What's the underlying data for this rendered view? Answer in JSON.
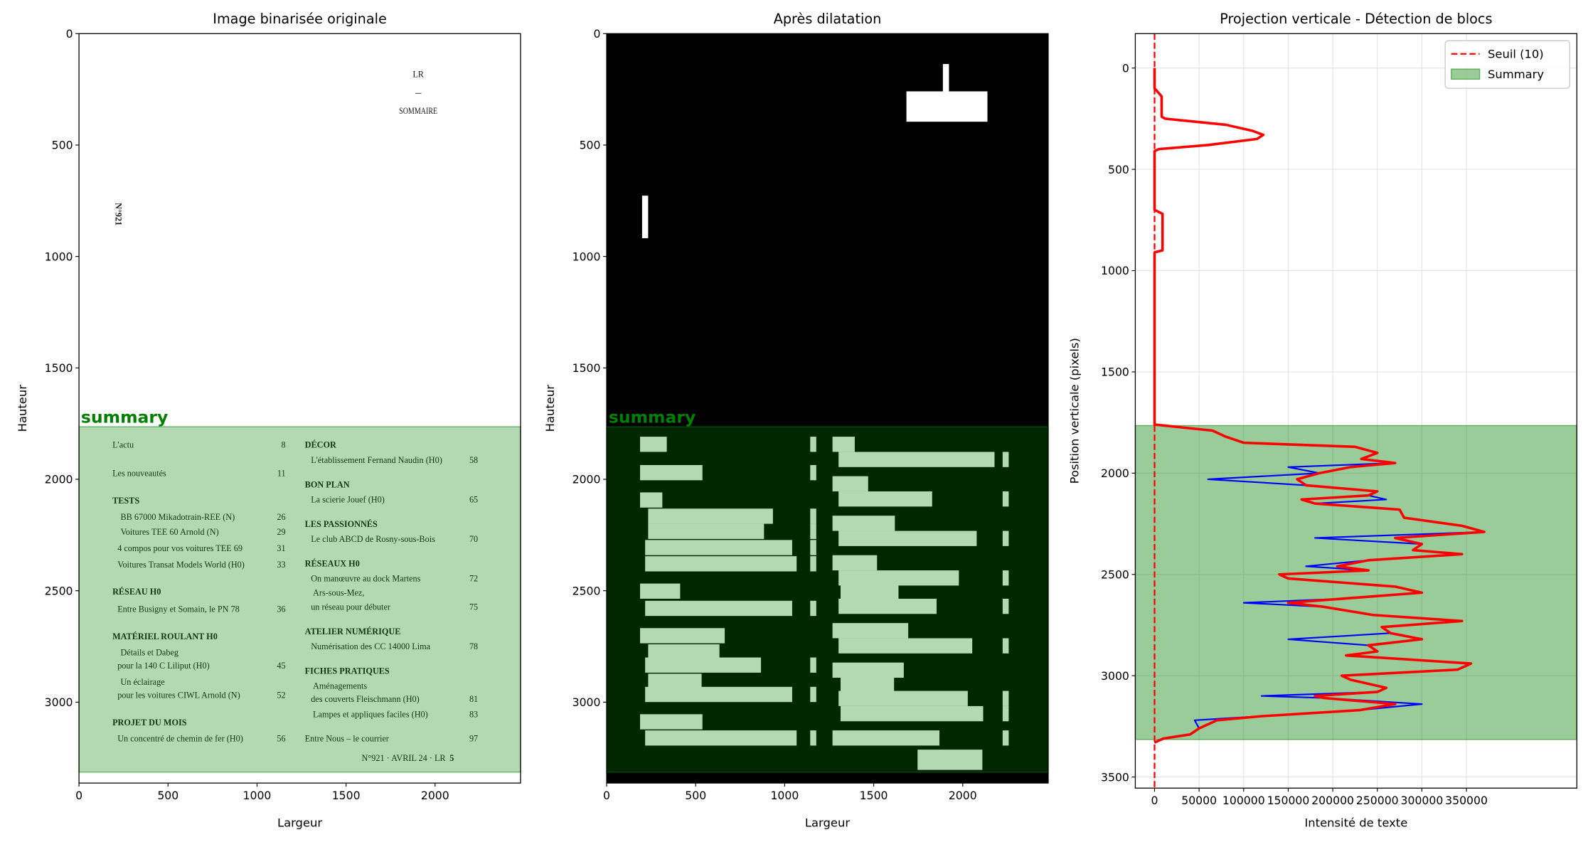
{
  "chart_data": [
    {
      "type": "image",
      "title": "Image binarisée originale",
      "xlabel": "Largeur",
      "ylabel": "Hauteur",
      "background": "white",
      "xlim": [
        0,
        2480
      ],
      "ylim": [
        3363,
        0
      ],
      "xticks": [
        0,
        500,
        1000,
        1500,
        2000
      ],
      "yticks": [
        0,
        500,
        1000,
        1500,
        2000,
        2500,
        3000
      ],
      "blocks": [
        {
          "label": "summary",
          "y0": 1764,
          "y1": 3314,
          "color": "green",
          "alpha": 0.3
        }
      ],
      "page_text": {
        "header": "LR",
        "title": "SOMMAIRE",
        "issue": "N°921",
        "entries": [
          {
            "text": "L'actu",
            "page": 8
          },
          {
            "text": "Les nouveautés",
            "page": 11
          },
          {
            "text": "TESTS"
          },
          {
            "text": "BB 67000 Mikadotrain-REE (N)",
            "page": 26
          },
          {
            "text": "Voitures TEE 60 Arnold (N)",
            "page": 29
          },
          {
            "text": "4 compos pour vos voitures TEE 69",
            "page": 31
          },
          {
            "text": "Voitures Transat Models World (H0)",
            "page": 33
          },
          {
            "text": "RÉSEAU H0"
          },
          {
            "text": "Entre Busigny et Somain, le PN 78",
            "page": 36
          },
          {
            "text": "MATÉRIEL ROULANT H0"
          },
          {
            "text": "Détails et Dabeg"
          },
          {
            "text": "pour la 140 C Liliput (H0)",
            "page": 45
          },
          {
            "text": "Un éclairage"
          },
          {
            "text": "pour les voitures CIWL Arnold (N)",
            "page": 52
          },
          {
            "text": "PROJET DU MOIS"
          },
          {
            "text": "Un concentré de chemin de fer (H0)",
            "page": 56
          },
          {
            "text": "DÉCOR"
          },
          {
            "text": "L'établissement Fernand Naudin (H0)",
            "page": 58
          },
          {
            "text": "BON PLAN"
          },
          {
            "text": "La scierie Jouef (H0)",
            "page": 65
          },
          {
            "text": "LES PASSIONNÉS"
          },
          {
            "text": "Le club ABCD de Rosny-sous-Bois",
            "page": 70
          },
          {
            "text": "RÉSEAUX H0"
          },
          {
            "text": "On manœuvre au dock Martens",
            "page": 72
          },
          {
            "text": "Ars-sous-Mez,"
          },
          {
            "text": "un réseau pour débuter",
            "page": 75
          },
          {
            "text": "ATELIER NUMÉRIQUE"
          },
          {
            "text": "Numérisation des CC 14000 Lima",
            "page": 78
          },
          {
            "text": "FICHES PRATIQUES"
          },
          {
            "text": "Aménagements"
          },
          {
            "text": "des couverts Fleischmann (H0)",
            "page": 81
          },
          {
            "text": "Lampes et appliques faciles (H0)",
            "page": 83
          },
          {
            "text": "Entre Nous – le courrier",
            "page": 97
          }
        ],
        "footer": "N°921 · AVRIL 24 · LR",
        "footer_page": 5
      }
    },
    {
      "type": "image",
      "title": "Après dilatation",
      "xlabel": "Largeur",
      "ylabel": "Hauteur",
      "background": "black",
      "xlim": [
        0,
        2480
      ],
      "ylim": [
        3363,
        0
      ],
      "xticks": [
        0,
        500,
        1000,
        1500,
        2000
      ],
      "yticks": [
        0,
        500,
        1000,
        1500,
        2000,
        2500,
        3000
      ],
      "blocks": [
        {
          "label": "summary",
          "y0": 1764,
          "y1": 3314,
          "color": "green",
          "alpha": 0.3
        }
      ]
    },
    {
      "type": "profile",
      "title": "Projection verticale - Détection de blocs",
      "xlabel": "Intensité de texte",
      "ylabel": "Position verticale (pixels)",
      "xlim": [
        -21600,
        473900
      ],
      "ylim": [
        3555,
        -170
      ],
      "xticks": [
        0,
        50000,
        100000,
        150000,
        200000,
        250000,
        300000,
        350000
      ],
      "yticks": [
        0,
        500,
        1000,
        1500,
        2000,
        2500,
        3000,
        3500
      ],
      "grid": true,
      "legend": "upper right",
      "y": [
        0,
        100,
        130,
        140,
        240,
        250,
        280,
        310,
        330,
        350,
        380,
        400,
        410,
        700,
        720,
        900,
        910,
        1760,
        1790,
        1820,
        1850,
        1870,
        1900,
        1930,
        1950,
        1970,
        2000,
        2030,
        2060,
        2090,
        2110,
        2130,
        2150,
        2180,
        2220,
        2260,
        2290,
        2320,
        2350,
        2380,
        2400,
        2430,
        2460,
        2480,
        2500,
        2520,
        2560,
        2590,
        2620,
        2640,
        2660,
        2700,
        2730,
        2760,
        2790,
        2820,
        2850,
        2880,
        2900,
        2940,
        2970,
        3000,
        3020,
        3060,
        3080,
        3100,
        3110,
        3140,
        3170,
        3200,
        3220,
        3260,
        3290,
        3310,
        3330
      ],
      "series": [
        {
          "color": "blue",
          "values": [
            0,
            0,
            6000,
            8000,
            8000,
            12000,
            80000,
            110000,
            122000,
            115000,
            60000,
            5000,
            0,
            0,
            9000,
            9000,
            0,
            0,
            65000,
            80000,
            100000,
            225000,
            250000,
            232000,
            270000,
            150000,
            185000,
            60000,
            170000,
            250000,
            240000,
            260000,
            180000,
            275000,
            280000,
            345000,
            370000,
            180000,
            300000,
            290000,
            345000,
            240000,
            170000,
            240000,
            140000,
            150000,
            270000,
            300000,
            210000,
            100000,
            190000,
            245000,
            345000,
            255000,
            265000,
            150000,
            240000,
            250000,
            215000,
            355000,
            340000,
            210000,
            220000,
            260000,
            250000,
            120000,
            190000,
            300000,
            230000,
            120000,
            45000,
            50000,
            40000,
            10000,
            0
          ]
        },
        {
          "color": "red",
          "values": [
            0,
            0,
            6000,
            8000,
            8000,
            12000,
            80000,
            110000,
            122000,
            115000,
            60000,
            5000,
            0,
            0,
            9000,
            9000,
            0,
            0,
            65000,
            80000,
            100000,
            225000,
            250000,
            232000,
            270000,
            220000,
            185000,
            160000,
            170000,
            250000,
            240000,
            165000,
            180000,
            275000,
            280000,
            345000,
            370000,
            270000,
            300000,
            290000,
            345000,
            240000,
            205000,
            240000,
            140000,
            150000,
            270000,
            300000,
            210000,
            150000,
            190000,
            245000,
            345000,
            255000,
            265000,
            300000,
            240000,
            250000,
            215000,
            355000,
            340000,
            210000,
            220000,
            260000,
            250000,
            180000,
            190000,
            270000,
            230000,
            120000,
            70000,
            50000,
            40000,
            10000,
            0
          ]
        }
      ],
      "threshold": {
        "name": "Seuil (10)",
        "value": 10,
        "color": "red"
      },
      "span": {
        "name": "Summary",
        "y0": 1765,
        "y1": 3315,
        "color": "green",
        "alpha": 0.4
      }
    }
  ]
}
